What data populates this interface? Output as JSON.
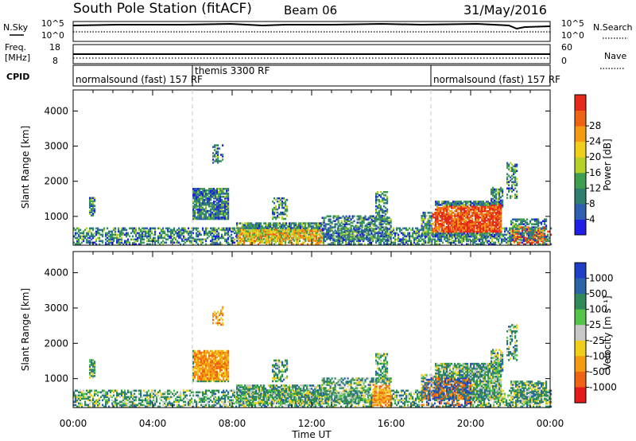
{
  "header": {
    "station": "South Pole Station (fitACF)",
    "beam": "Beam 06",
    "date": "31/May/2016"
  },
  "status_panels": {
    "nsky_label": "N.Sky",
    "nsearch_label": "N.Search",
    "freq_label_line1": "Freq.",
    "freq_label_line2": "[MHz]",
    "nave_label": "Nave",
    "cpid_label": "CPID",
    "left_ticks_noise": [
      "10^5",
      "10^0"
    ],
    "right_ticks_noise": [
      "10^5",
      "10^0"
    ],
    "left_ticks_freq": [
      "18",
      "8"
    ],
    "right_ticks_freq": [
      "60",
      "0"
    ]
  },
  "cpid_segments": [
    {
      "name": "normalsound (fast)",
      "code": "157 RF",
      "start_hour": 0,
      "end_hour": 6
    },
    {
      "name": "themis",
      "code": "3300 RF",
      "start_hour": 6,
      "end_hour": 18
    },
    {
      "name": "normalsound (fast)",
      "code": "157 RF",
      "start_hour": 18,
      "end_hour": 24
    }
  ],
  "chart_data": [
    {
      "type": "heatmap",
      "name": "power",
      "xlabel": "Time UT",
      "ylabel": "Slant Range [km]",
      "xlim_hours": [
        0,
        24
      ],
      "ylim": [
        180,
        4600
      ],
      "yticks": [
        "1000",
        "2000",
        "3000",
        "4000"
      ],
      "colorbar_label": "Power [dB]",
      "colorbar_ticks": [
        "4",
        "8",
        "12",
        "16",
        "20",
        "24",
        "28"
      ],
      "colorbar_colors": [
        "#1f1fe6",
        "#2e5fb0",
        "#2f7e6e",
        "#3f9f50",
        "#b6d22a",
        "#f0cf1a",
        "#f49a14",
        "#ef6414",
        "#e5291a"
      ]
    },
    {
      "type": "heatmap",
      "name": "velocity",
      "xlabel": "Time UT",
      "ylabel": "Slant Range [km]",
      "xlim_hours": [
        0,
        24
      ],
      "ylim": [
        180,
        4600
      ],
      "yticks": [
        "1000",
        "2000",
        "3000",
        "4000"
      ],
      "xticks": [
        "00:00",
        "04:00",
        "08:00",
        "12:00",
        "16:00",
        "20:00",
        "00:00"
      ],
      "colorbar_label": "Velocity [m s⁻¹]",
      "colorbar_ticks": [
        "1000",
        "500",
        "100",
        "25",
        "-25",
        "-100",
        "-500",
        "-1000"
      ],
      "colorbar_colors": [
        "#1f3fc8",
        "#2a63a8",
        "#2f8a5a",
        "#55c54a",
        "#c8c8c8",
        "#f0cf1a",
        "#f49a14",
        "#ef6414",
        "#e51a1a"
      ]
    }
  ]
}
